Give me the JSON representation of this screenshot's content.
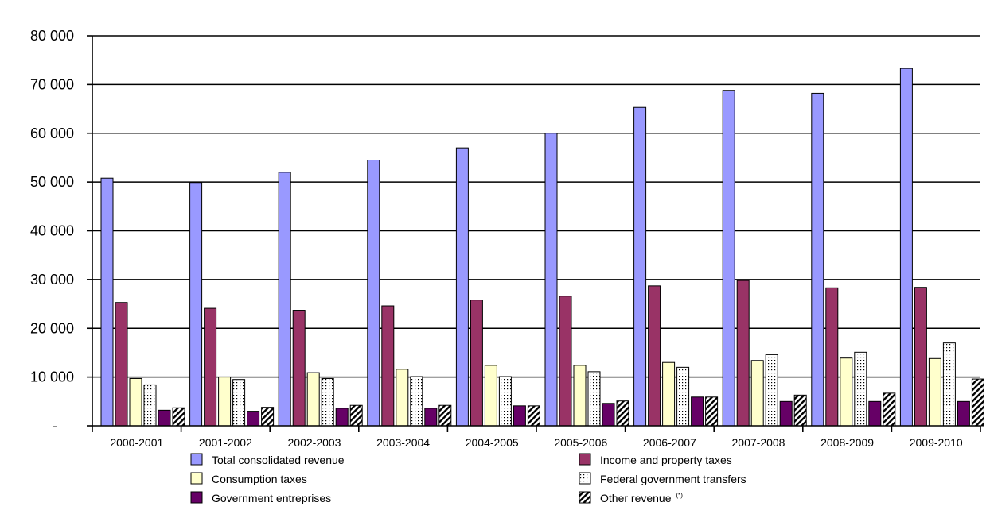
{
  "chart_data": {
    "type": "bar",
    "title": "",
    "xlabel": "",
    "ylabel": "",
    "ylim": [
      0,
      80000
    ],
    "y_ticks": [
      {
        "value": 0,
        "label": "-"
      },
      {
        "value": 10000,
        "label": "10 000"
      },
      {
        "value": 20000,
        "label": "20 000"
      },
      {
        "value": 30000,
        "label": "30 000"
      },
      {
        "value": 40000,
        "label": "40 000"
      },
      {
        "value": 50000,
        "label": "50 000"
      },
      {
        "value": 60000,
        "label": "60 000"
      },
      {
        "value": 70000,
        "label": "70 000"
      },
      {
        "value": 80000,
        "label": "80 000"
      }
    ],
    "grid": true,
    "legend_position": "bottom",
    "categories": [
      "2000-2001",
      "2001-2002",
      "2002-2003",
      "2003-2004",
      "2004-2005",
      "2005-2006",
      "2006-2007",
      "2007-2008",
      "2008-2009",
      "2009-2010"
    ],
    "series": [
      {
        "name": "Total consolidated revenue",
        "color": "#9999ff",
        "pattern": "solid",
        "values": [
          50800,
          49900,
          52000,
          54500,
          57000,
          60000,
          65300,
          68800,
          68200,
          73300
        ]
      },
      {
        "name": "Income and property taxes",
        "color": "#993366",
        "pattern": "solid",
        "values": [
          25300,
          24100,
          23700,
          24600,
          25800,
          26600,
          28700,
          29800,
          28300,
          28400
        ]
      },
      {
        "name": "Consumption taxes",
        "color": "#ffffcc",
        "pattern": "solid",
        "values": [
          9700,
          10000,
          10900,
          11600,
          12400,
          12400,
          13000,
          13400,
          13900,
          13800
        ]
      },
      {
        "name": "Federal government transfers",
        "color": "#ffffff",
        "pattern": "dots",
        "values": [
          8400,
          9500,
          9700,
          10100,
          10100,
          11100,
          12000,
          14600,
          15100,
          17000
        ]
      },
      {
        "name": "Government entreprises",
        "color": "#660066",
        "pattern": "solid",
        "values": [
          3200,
          3000,
          3600,
          3600,
          4100,
          4600,
          5900,
          5000,
          5000,
          5000
        ]
      },
      {
        "name": "Other revenue",
        "name_suffix": "(*)",
        "color": "#000000",
        "pattern": "hatch",
        "values": [
          3700,
          3800,
          4200,
          4200,
          4100,
          5100,
          5900,
          6300,
          6700,
          9600
        ]
      }
    ]
  }
}
